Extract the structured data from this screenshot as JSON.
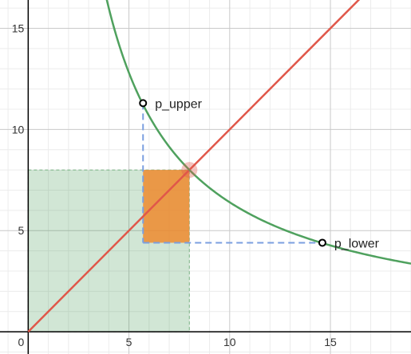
{
  "chart_data": {
    "type": "line",
    "title": "",
    "xlabel": "",
    "ylabel": "",
    "xlim": [
      -1.4,
      19
    ],
    "ylim": [
      -1.1,
      16.4
    ],
    "grid": true,
    "x_ticks": [
      0,
      5,
      10,
      15
    ],
    "y_ticks": [
      5,
      10,
      15
    ],
    "x_tick_labels": [
      "0",
      "5",
      "10",
      "15"
    ],
    "y_tick_labels": [
      "5",
      "10",
      "15"
    ],
    "colors": {
      "grid_minor": "#ececec",
      "grid_major": "#c9c9c9",
      "axis": "#000000",
      "curve": "#4fa15e",
      "line": "#e0574a",
      "green_region": "#2e8b3e",
      "orange_region": "#ee8a2e",
      "dashes": "#7b9fe0"
    },
    "curve": {
      "function": "y = 64 / x",
      "x_range": [
        3.3,
        19
      ]
    },
    "line": {
      "function": "y = x",
      "x_range": [
        0,
        19
      ]
    },
    "equilibrium": {
      "x": 8,
      "y": 8
    },
    "green_region": {
      "x": [
        0,
        8
      ],
      "y": [
        0,
        8
      ]
    },
    "orange_region": {
      "x": [
        5.7,
        8
      ],
      "y": [
        4.4,
        8
      ]
    },
    "points": [
      {
        "name": "p_upper",
        "label": "p_upper",
        "x": 5.7,
        "y": 11.3
      },
      {
        "name": "p_lower",
        "label": "p_lower",
        "x": 14.6,
        "y": 4.4
      }
    ],
    "dashed_lines": [
      {
        "from": [
          5.7,
          11.3
        ],
        "to": [
          5.7,
          4.4
        ]
      },
      {
        "from": [
          5.7,
          4.4
        ],
        "to": [
          14.6,
          4.4
        ]
      }
    ]
  }
}
